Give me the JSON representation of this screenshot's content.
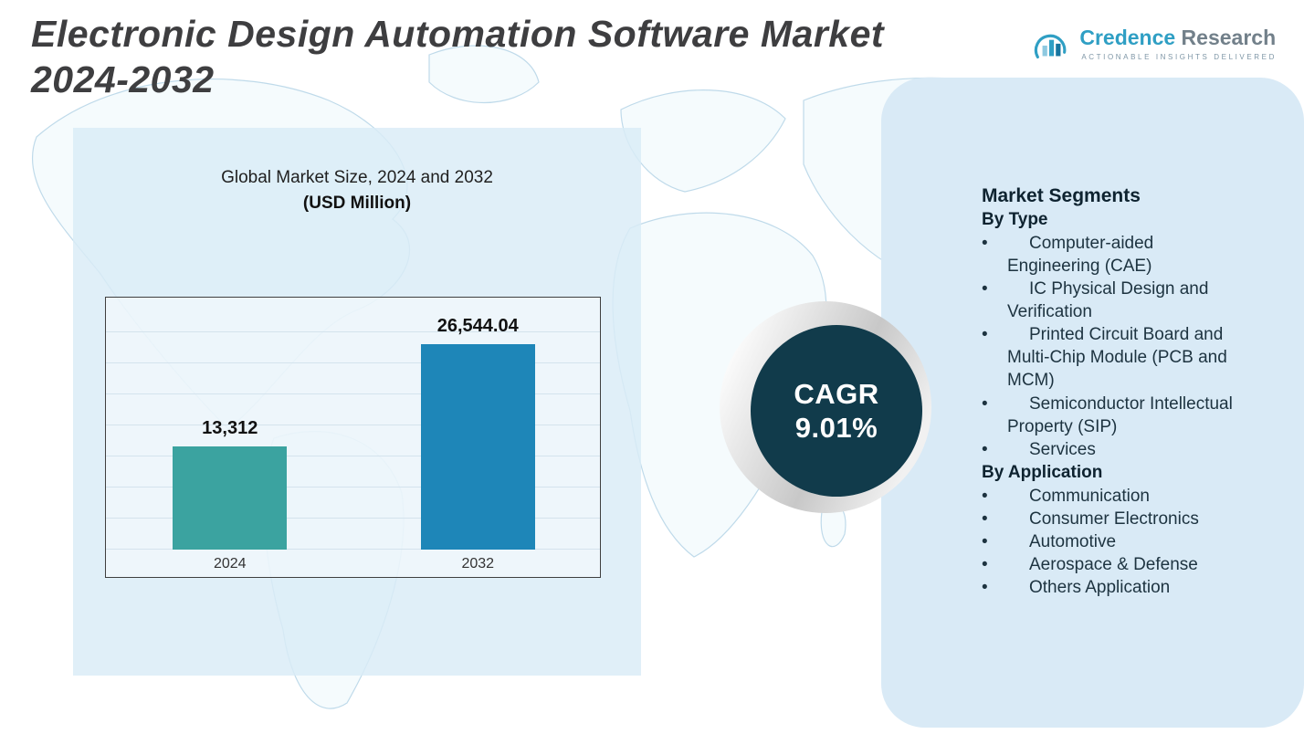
{
  "header": {
    "title_line1": "Electronic Design Automation Software Market",
    "title_line2": "2024-2032"
  },
  "brand": {
    "name_primary": "Credence",
    "name_secondary": " Research",
    "tagline": "Actionable Insights Delivered"
  },
  "chart_data": {
    "type": "bar",
    "title": "Global Market Size, 2024 and 2032",
    "subtitle": "(USD Million)",
    "categories": [
      "2024",
      "2032"
    ],
    "values": [
      13312,
      26544.04
    ],
    "value_labels": [
      "13,312",
      "26,544.04"
    ],
    "bar_colors": [
      "#3BA3A0",
      "#1E86B8"
    ],
    "xlabel": "",
    "ylabel": "",
    "ylim": [
      0,
      30000
    ],
    "grid": true,
    "legend": false
  },
  "cagr": {
    "label": "CAGR",
    "value": "9.01%"
  },
  "segments": {
    "title": "Market Segments",
    "groups": [
      {
        "heading": "By Type",
        "items": [
          "Computer-aided Engineering (CAE)",
          "IC Physical Design and Verification",
          "Printed Circuit Board and Multi-Chip Module (PCB and MCM)",
          "Semiconductor Intellectual Property (SIP)",
          "Services"
        ]
      },
      {
        "heading": "By Application",
        "items": [
          "Communication",
          "Consumer Electronics",
          "Automotive",
          "Aerospace & Defense",
          "Others Application"
        ]
      }
    ]
  },
  "colors": {
    "teal_bar": "#3BA3A0",
    "blue_bar": "#1E86B8",
    "cagr_circle": "#113B4B",
    "left_panel": "#E2EFF8",
    "right_panel": "#D9EAF6",
    "map_line": "#B9D7E8"
  }
}
